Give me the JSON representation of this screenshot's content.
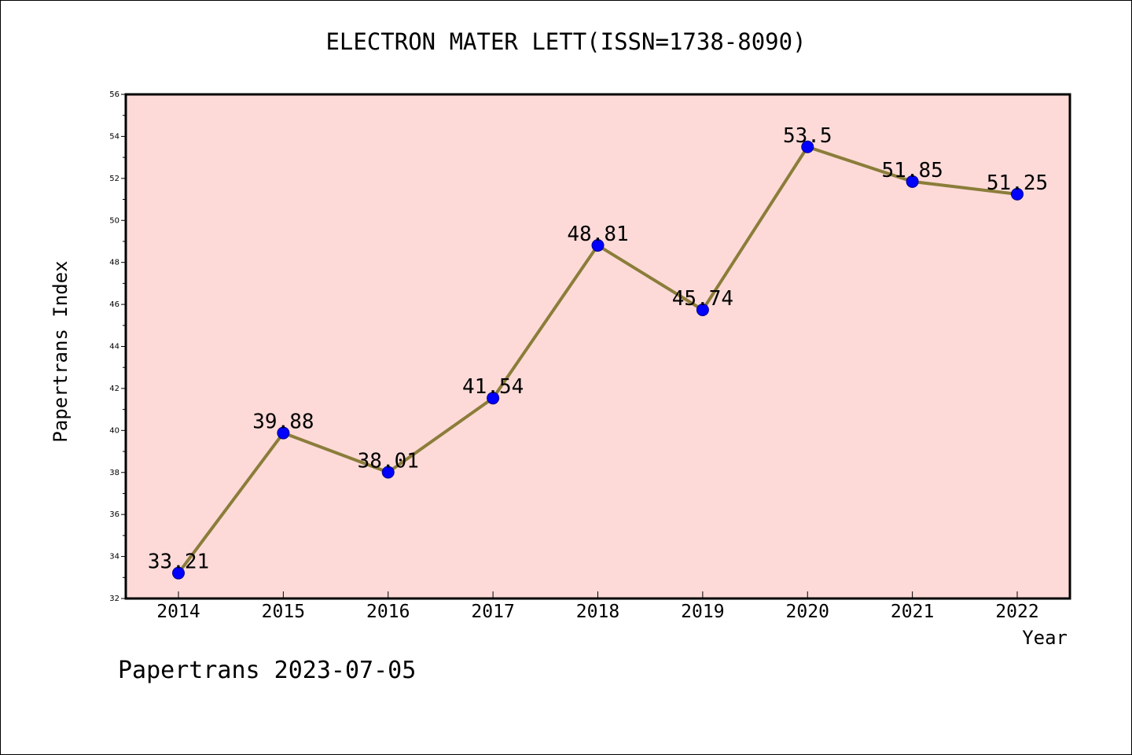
{
  "chart_data": {
    "type": "line",
    "title": "ELECTRON MATER LETT(ISSN=1738-8090)",
    "xlabel": "Year",
    "ylabel": "Papertrans Index",
    "x": [
      "2014",
      "2015",
      "2016",
      "2017",
      "2018",
      "2019",
      "2020",
      "2021",
      "2022"
    ],
    "series": [
      {
        "values": [
          33.21,
          39.88,
          38.01,
          41.54,
          48.81,
          45.74,
          53.5,
          51.85,
          51.25
        ],
        "labels": [
          "33.21",
          "39.88",
          "38.01",
          "41.54",
          "48.81",
          "45.74",
          "53.5",
          "51.85",
          "51.25"
        ],
        "line_color": "#8b7d3a",
        "marker_color": "#0000ff"
      }
    ],
    "ylim": [
      32,
      56
    ],
    "yticks": [
      "32",
      "34",
      "36",
      "38",
      "40",
      "42",
      "44",
      "46",
      "48",
      "50",
      "52",
      "54",
      "56"
    ],
    "plot_background": "#fddad8",
    "grid": false,
    "legend": "none"
  },
  "footer": {
    "text": "Papertrans 2023-07-05"
  }
}
